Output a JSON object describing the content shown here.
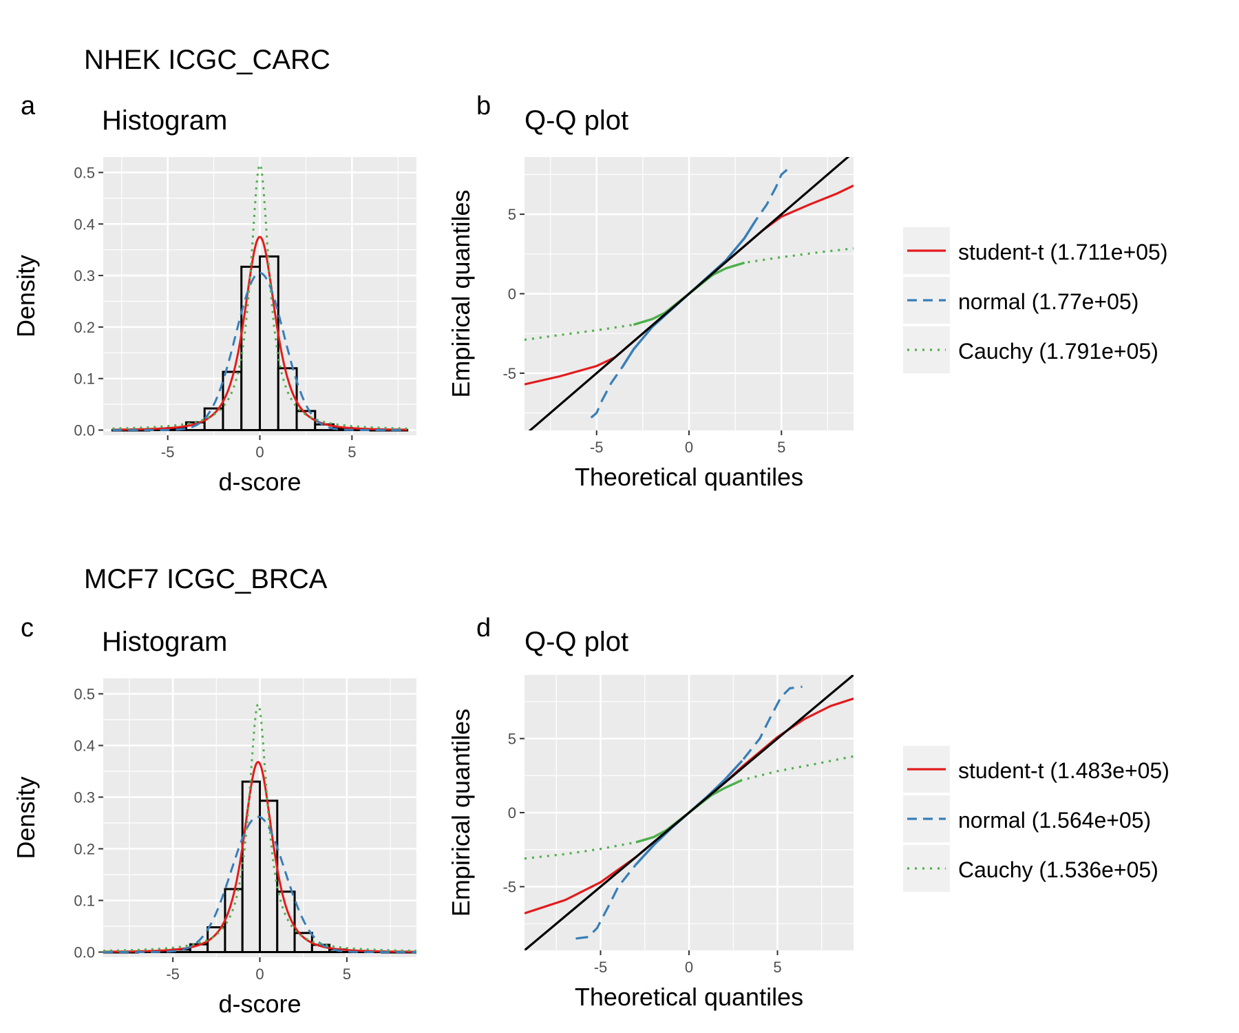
{
  "colors": {
    "panel_bg": "#ebebeb",
    "grid": "#ffffff",
    "student_t": "#e41a1c",
    "normal": "#377eb8",
    "cauchy": "#4daf4a",
    "reference_line": "#000000",
    "bars": "#ebebeb"
  },
  "figure": {
    "sections": [
      {
        "title": "NHEK ICGC_CARC",
        "hist_letter": "a",
        "qq_letter": "b"
      },
      {
        "title": "MCF7 ICGC_BRCA",
        "hist_letter": "c",
        "qq_letter": "d"
      }
    ]
  },
  "chart_data": [
    {
      "id": "a",
      "type": "bar",
      "title": "Histogram",
      "xlabel": "d-score",
      "ylabel": "Density",
      "xlim": [
        -8.5,
        8.5
      ],
      "ylim": [
        -0.01,
        0.53
      ],
      "xticks": [
        -5,
        0,
        5
      ],
      "yticks": [
        0.0,
        0.1,
        0.2,
        0.3,
        0.4,
        0.5
      ],
      "ytick_labels": [
        "0.0",
        "0.1",
        "0.2",
        "0.3",
        "0.4",
        "0.5"
      ],
      "bins": [
        {
          "x0": -8,
          "x1": -7,
          "value": 0.0
        },
        {
          "x0": -7,
          "x1": -6,
          "value": 0.0
        },
        {
          "x0": -6,
          "x1": -5,
          "value": 0.001
        },
        {
          "x0": -5,
          "x1": -4,
          "value": 0.004
        },
        {
          "x0": -4,
          "x1": -3,
          "value": 0.015
        },
        {
          "x0": -3,
          "x1": -2,
          "value": 0.042
        },
        {
          "x0": -2,
          "x1": -1,
          "value": 0.113
        },
        {
          "x0": -1,
          "x1": 0,
          "value": 0.317
        },
        {
          "x0": 0,
          "x1": 1,
          "value": 0.337
        },
        {
          "x0": 1,
          "x1": 2,
          "value": 0.12
        },
        {
          "x0": 2,
          "x1": 3,
          "value": 0.037
        },
        {
          "x0": 3,
          "x1": 4,
          "value": 0.011
        },
        {
          "x0": 4,
          "x1": 5,
          "value": 0.004
        },
        {
          "x0": 5,
          "x1": 6,
          "value": 0.001
        },
        {
          "x0": 6,
          "x1": 7,
          "value": 0.0
        },
        {
          "x0": 7,
          "x1": 8,
          "value": 0.0
        }
      ],
      "curves": [
        {
          "name": "student-t",
          "mu": 0.0,
          "peak": 0.375,
          "df": 2.6
        },
        {
          "name": "normal",
          "mu": 0.0,
          "peak": 0.305,
          "sd": 1.31
        },
        {
          "name": "Cauchy",
          "mu": 0.0,
          "peak": 0.515,
          "gamma": 0.62
        }
      ]
    },
    {
      "id": "b",
      "type": "line",
      "title": "Q-Q plot",
      "xlabel": "Theoretical quantiles",
      "ylabel": "Empirical quantiles",
      "xlim": [
        -8.9,
        8.9
      ],
      "ylim": [
        -8.6,
        8.6
      ],
      "xticks": [
        -5,
        0,
        5
      ],
      "yticks": [
        -5,
        0,
        5
      ],
      "series": [
        {
          "name": "student-t (1.711e+05)",
          "points": [
            [
              -8.9,
              -5.7
            ],
            [
              -7,
              -5.2
            ],
            [
              -5,
              -4.55
            ],
            [
              -4,
              -4.0
            ],
            [
              -3,
              -3.0
            ],
            [
              -2,
              -2.0
            ],
            [
              -1,
              -1.0
            ],
            [
              0,
              0
            ],
            [
              1,
              1.0
            ],
            [
              2,
              2.0
            ],
            [
              3,
              3.0
            ],
            [
              4,
              4.0
            ],
            [
              5,
              4.85
            ],
            [
              6.5,
              5.6
            ],
            [
              8,
              6.3
            ],
            [
              8.9,
              6.8
            ]
          ]
        },
        {
          "name": "normal (1.77e+05)",
          "points": [
            [
              -5.3,
              -7.8
            ],
            [
              -5.0,
              -7.5
            ],
            [
              -4.7,
              -6.7
            ],
            [
              -4.2,
              -5.6
            ],
            [
              -3.6,
              -4.6
            ],
            [
              -3,
              -3.5
            ],
            [
              -2,
              -2.1
            ],
            [
              -1,
              -1.05
            ],
            [
              0,
              0
            ],
            [
              1,
              1.05
            ],
            [
              2,
              2.1
            ],
            [
              3,
              3.5
            ],
            [
              3.6,
              4.6
            ],
            [
              4.2,
              5.6
            ],
            [
              4.7,
              6.7
            ],
            [
              5.0,
              7.5
            ],
            [
              5.3,
              7.8
            ]
          ]
        },
        {
          "name": "Cauchy (1.791e+05)",
          "points": [
            [
              -8.9,
              -2.9
            ],
            [
              -7,
              -2.6
            ],
            [
              -5,
              -2.3
            ],
            [
              -3,
              -1.95
            ],
            [
              -2,
              -1.6
            ],
            [
              -1.3,
              -1.2
            ],
            [
              0,
              0
            ],
            [
              1.3,
              1.2
            ],
            [
              2,
              1.6
            ],
            [
              3,
              1.95
            ],
            [
              5,
              2.3
            ],
            [
              7,
              2.6
            ],
            [
              8.9,
              2.85
            ]
          ]
        }
      ]
    },
    {
      "id": "c",
      "type": "bar",
      "title": "Histogram",
      "xlabel": "d-score",
      "ylabel": "Density",
      "xlim": [
        -9.0,
        9.0
      ],
      "ylim": [
        -0.01,
        0.53
      ],
      "xticks": [
        -5,
        0,
        5
      ],
      "yticks": [
        0.0,
        0.1,
        0.2,
        0.3,
        0.4,
        0.5
      ],
      "ytick_labels": [
        "0.0",
        "0.1",
        "0.2",
        "0.3",
        "0.4",
        "0.5"
      ],
      "bins": [
        {
          "x0": -9,
          "x1": -8,
          "value": 0.0
        },
        {
          "x0": -8,
          "x1": -7,
          "value": 0.0
        },
        {
          "x0": -7,
          "x1": -6,
          "value": 0.001
        },
        {
          "x0": -6,
          "x1": -5,
          "value": 0.002
        },
        {
          "x0": -5,
          "x1": -4,
          "value": 0.005
        },
        {
          "x0": -4,
          "x1": -3,
          "value": 0.015
        },
        {
          "x0": -3,
          "x1": -2,
          "value": 0.048
        },
        {
          "x0": -2,
          "x1": -1,
          "value": 0.122
        },
        {
          "x0": -1,
          "x1": 0,
          "value": 0.33
        },
        {
          "x0": 0,
          "x1": 1,
          "value": 0.293
        },
        {
          "x0": 1,
          "x1": 2,
          "value": 0.117
        },
        {
          "x0": 2,
          "x1": 3,
          "value": 0.037
        },
        {
          "x0": 3,
          "x1": 4,
          "value": 0.014
        },
        {
          "x0": 4,
          "x1": 5,
          "value": 0.005
        },
        {
          "x0": 5,
          "x1": 6,
          "value": 0.002
        },
        {
          "x0": 6,
          "x1": 7,
          "value": 0.001
        },
        {
          "x0": 7,
          "x1": 8,
          "value": 0.0
        },
        {
          "x0": 8,
          "x1": 9,
          "value": 0.0
        }
      ],
      "curves": [
        {
          "name": "student-t",
          "mu": -0.1,
          "peak": 0.368,
          "df": 2.4
        },
        {
          "name": "normal",
          "mu": -0.1,
          "peak": 0.262,
          "sd": 1.53
        },
        {
          "name": "Cauchy",
          "mu": -0.1,
          "peak": 0.48,
          "gamma": 0.66
        }
      ]
    },
    {
      "id": "d",
      "type": "line",
      "title": "Q-Q plot",
      "xlabel": "Theoretical quantiles",
      "ylabel": "Empirical quantiles",
      "xlim": [
        -9.3,
        9.3
      ],
      "ylim": [
        -9.3,
        9.3
      ],
      "xticks": [
        -5,
        0,
        5
      ],
      "yticks": [
        -5,
        0,
        5
      ],
      "series": [
        {
          "name": "student-t (1.483e+05)",
          "points": [
            [
              -9.3,
              -6.8
            ],
            [
              -7,
              -5.9
            ],
            [
              -5,
              -4.7
            ],
            [
              -3,
              -3.0
            ],
            [
              -2,
              -2.0
            ],
            [
              -1,
              -1.0
            ],
            [
              0,
              0
            ],
            [
              1,
              1.0
            ],
            [
              2,
              2.0
            ],
            [
              3,
              3.1
            ],
            [
              4,
              4.1
            ],
            [
              5,
              5.1
            ],
            [
              6.5,
              6.3
            ],
            [
              8,
              7.2
            ],
            [
              9.3,
              7.7
            ]
          ]
        },
        {
          "name": "normal (1.564e+05)",
          "points": [
            [
              -6.4,
              -8.5
            ],
            [
              -5.7,
              -8.4
            ],
            [
              -5.2,
              -7.8
            ],
            [
              -4.5,
              -6.2
            ],
            [
              -4.0,
              -5.0
            ],
            [
              -3,
              -3.5
            ],
            [
              -2,
              -2.2
            ],
            [
              -1,
              -1.05
            ],
            [
              0,
              0
            ],
            [
              1,
              1.05
            ],
            [
              2,
              2.2
            ],
            [
              3,
              3.5
            ],
            [
              4.0,
              5.0
            ],
            [
              4.5,
              6.2
            ],
            [
              5.2,
              7.8
            ],
            [
              5.7,
              8.4
            ],
            [
              6.4,
              8.5
            ]
          ]
        },
        {
          "name": "Cauchy (1.536e+05)",
          "points": [
            [
              -9.3,
              -3.1
            ],
            [
              -7,
              -2.8
            ],
            [
              -5,
              -2.45
            ],
            [
              -3,
              -2.0
            ],
            [
              -2,
              -1.65
            ],
            [
              -1.3,
              -1.2
            ],
            [
              0,
              0
            ],
            [
              1.3,
              1.2
            ],
            [
              2,
              1.65
            ],
            [
              3,
              2.2
            ],
            [
              5,
              2.8
            ],
            [
              7,
              3.25
            ],
            [
              9.3,
              3.8
            ]
          ]
        }
      ]
    }
  ],
  "legends": [
    {
      "entries": [
        "student-t (1.711e+05)",
        "normal (1.77e+05)",
        "Cauchy (1.791e+05)"
      ]
    },
    {
      "entries": [
        "student-t (1.483e+05)",
        "normal (1.564e+05)",
        "Cauchy (1.536e+05)"
      ]
    }
  ]
}
